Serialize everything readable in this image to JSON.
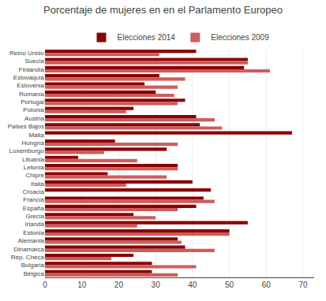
{
  "chart_data": {
    "type": "bar",
    "orientation": "horizontal",
    "title": "Porcentaje de mujeres en en el Parlamento Europeo",
    "categories": [
      "Reino Unido",
      "Suecia",
      "Finlandia",
      "Eslovaquia",
      "Eslovenia",
      "Rumania",
      "Portugal",
      "Polonia",
      "Austria",
      "Paises Bajos",
      "Malta",
      "Hungría",
      "Luxemburgo",
      "Lituania",
      "Letonia",
      "Chipre",
      "Italia",
      "Croacia",
      "Francia",
      "España",
      "Grecia",
      "Irlanda",
      "Estonia",
      "Alemania",
      "Dinamarca",
      "Rep. Checa",
      "Bulgaria",
      "Bélgica"
    ],
    "series": [
      {
        "name": "Elecciones 2014",
        "color": "#8B0000",
        "values": [
          41,
          55,
          54,
          31,
          27,
          30,
          38,
          24,
          41,
          42,
          67,
          19,
          33,
          9,
          36,
          17,
          40,
          45,
          43,
          41,
          24,
          55,
          50,
          36,
          38,
          24,
          29,
          29
        ]
      },
      {
        "name": "Elecciones 2009",
        "color": "#CD5C5C",
        "values": [
          31,
          55,
          61,
          38,
          36,
          35,
          36,
          22,
          46,
          48,
          0,
          36,
          16,
          25,
          36,
          33,
          22,
          0,
          46,
          36,
          30,
          25,
          50,
          37,
          46,
          18,
          41,
          36
        ]
      }
    ],
    "xlim": [
      0,
      73
    ],
    "xticks": [
      0,
      10,
      20,
      30,
      40,
      50,
      60,
      70
    ],
    "grid": true,
    "legend": "top"
  }
}
